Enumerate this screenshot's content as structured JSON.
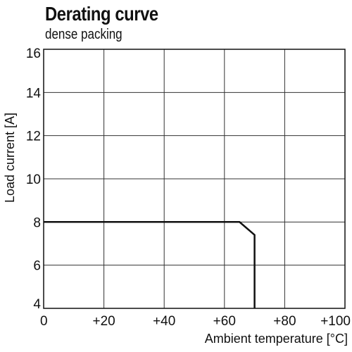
{
  "chart_data": {
    "type": "line",
    "title": "Derating curve",
    "subtitle": "dense packing",
    "xlabel": "Ambient temperature [°C]",
    "ylabel": "Load current [A]",
    "xlim": [
      0,
      100
    ],
    "ylim": [
      4,
      16
    ],
    "x_ticks": [
      0,
      20,
      40,
      60,
      80,
      100
    ],
    "x_tick_labels": [
      "0",
      "+20",
      "+40",
      "+60",
      "+80",
      "+100"
    ],
    "y_ticks": [
      4,
      6,
      8,
      10,
      12,
      14,
      16
    ],
    "y_tick_labels": [
      "4",
      "6",
      "8",
      "10",
      "12",
      "14",
      "16"
    ],
    "grid": true,
    "series": [
      {
        "x": [
          0,
          65,
          70,
          70
        ],
        "y": [
          8,
          8,
          7.4,
          4
        ]
      }
    ]
  }
}
